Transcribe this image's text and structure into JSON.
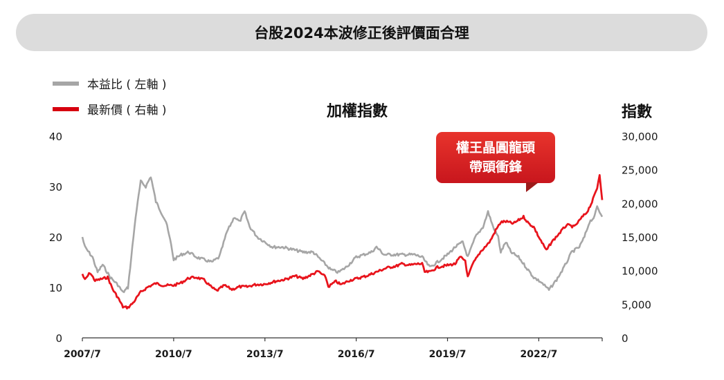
{
  "title": "台股2024本波修正後評價面合理",
  "legend": [
    {
      "label": "本益比 ( 左軸 )",
      "color": "#a6a6a6"
    },
    {
      "label": "最新價 ( 右軸 )",
      "color": "#e8141c"
    }
  ],
  "center_label": "加權指數",
  "right_axis_title": "指數",
  "callout": {
    "line1": "權王晶圓龍頭",
    "line2": "帶頭衝鋒"
  },
  "chart_data": {
    "type": "line",
    "x_ticks": [
      "2007/7",
      "2010/7",
      "2013/7",
      "2016/7",
      "2019/7",
      "2022/7"
    ],
    "x_range": [
      "2007/7",
      "2024/8"
    ],
    "y_left": {
      "ticks": [
        "0",
        "10",
        "20",
        "30",
        "40"
      ],
      "range": [
        0,
        40
      ]
    },
    "y_right": {
      "ticks": [
        "0",
        "5,000",
        "10,000",
        "15,000",
        "20,000",
        "25,000",
        "30,000"
      ],
      "range": [
        0,
        30000
      ]
    },
    "series": [
      {
        "name": "本益比 ( 左軸 )",
        "axis": "left",
        "color": "#a6a6a6",
        "points": [
          [
            "2007/7",
            20
          ],
          [
            "2007/8",
            18
          ],
          [
            "2007/11",
            16
          ],
          [
            "2008/1",
            13
          ],
          [
            "2008/3",
            14.5
          ],
          [
            "2008/6",
            12
          ],
          [
            "2008/9",
            10.5
          ],
          [
            "2008/11",
            9
          ],
          [
            "2009/1",
            10
          ],
          [
            "2009/4",
            24
          ],
          [
            "2009/6",
            31
          ],
          [
            "2009/8",
            30
          ],
          [
            "2009/10",
            32
          ],
          [
            "2009/12",
            27
          ],
          [
            "2010/2",
            25
          ],
          [
            "2010/4",
            23
          ],
          [
            "2010/6",
            18.5
          ],
          [
            "2010/7",
            15.5
          ],
          [
            "2010/10",
            16.5
          ],
          [
            "2011/1",
            17
          ],
          [
            "2011/4",
            16
          ],
          [
            "2011/7",
            15.5
          ],
          [
            "2011/10",
            15
          ],
          [
            "2012/1",
            16
          ],
          [
            "2012/4",
            21
          ],
          [
            "2012/7",
            24
          ],
          [
            "2012/9",
            23
          ],
          [
            "2012/11",
            25
          ],
          [
            "2013/1",
            22
          ],
          [
            "2013/4",
            20
          ],
          [
            "2013/7",
            19
          ],
          [
            "2013/10",
            18
          ],
          [
            "2014/2",
            18
          ],
          [
            "2014/6",
            17.5
          ],
          [
            "2014/10",
            17
          ],
          [
            "2015/2",
            17
          ],
          [
            "2015/6",
            15
          ],
          [
            "2015/9",
            13.5
          ],
          [
            "2015/12",
            13
          ],
          [
            "2016/3",
            14
          ],
          [
            "2016/7",
            16
          ],
          [
            "2016/10",
            16.5
          ],
          [
            "2017/1",
            17
          ],
          [
            "2017/3",
            18
          ],
          [
            "2017/6",
            16.5
          ],
          [
            "2017/10",
            16.5
          ],
          [
            "2018/2",
            16.5
          ],
          [
            "2018/6",
            16.5
          ],
          [
            "2018/9",
            16
          ],
          [
            "2018/12",
            14
          ],
          [
            "2019/3",
            15
          ],
          [
            "2019/7",
            16.5
          ],
          [
            "2019/10",
            18
          ],
          [
            "2020/1",
            19
          ],
          [
            "2020/3",
            16
          ],
          [
            "2020/6",
            20
          ],
          [
            "2020/9",
            22
          ],
          [
            "2020/11",
            25
          ],
          [
            "2021/1",
            22
          ],
          [
            "2021/3",
            20
          ],
          [
            "2021/4",
            17
          ],
          [
            "2021/6",
            19
          ],
          [
            "2021/8",
            17
          ],
          [
            "2021/11",
            16
          ],
          [
            "2022/2",
            14
          ],
          [
            "2022/5",
            12
          ],
          [
            "2022/8",
            11
          ],
          [
            "2022/11",
            9.5
          ],
          [
            "2023/2",
            11.5
          ],
          [
            "2023/5",
            14
          ],
          [
            "2023/8",
            17
          ],
          [
            "2023/11",
            18
          ],
          [
            "2024/1",
            20
          ],
          [
            "2024/3",
            23
          ],
          [
            "2024/5",
            24
          ],
          [
            "2024/6",
            26
          ],
          [
            "2024/7",
            25
          ],
          [
            "2024/8",
            24
          ]
        ]
      },
      {
        "name": "最新價 ( 右軸 )",
        "axis": "right",
        "color": "#e8141c",
        "points": [
          [
            "2007/7",
            9500
          ],
          [
            "2007/8",
            8600
          ],
          [
            "2007/10",
            9700
          ],
          [
            "2007/12",
            8500
          ],
          [
            "2008/3",
            8800
          ],
          [
            "2008/5",
            9000
          ],
          [
            "2008/7",
            7200
          ],
          [
            "2008/9",
            6000
          ],
          [
            "2008/11",
            4600
          ],
          [
            "2009/1",
            4500
          ],
          [
            "2009/3",
            5200
          ],
          [
            "2009/6",
            6800
          ],
          [
            "2009/9",
            7600
          ],
          [
            "2009/12",
            8100
          ],
          [
            "2010/3",
            7800
          ],
          [
            "2010/7",
            7800
          ],
          [
            "2010/10",
            8200
          ],
          [
            "2011/1",
            8900
          ],
          [
            "2011/4",
            9000
          ],
          [
            "2011/7",
            8600
          ],
          [
            "2011/10",
            7500
          ],
          [
            "2011/12",
            7000
          ],
          [
            "2012/3",
            7800
          ],
          [
            "2012/6",
            7200
          ],
          [
            "2012/9",
            7600
          ],
          [
            "2012/12",
            7600
          ],
          [
            "2013/3",
            7900
          ],
          [
            "2013/7",
            8000
          ],
          [
            "2013/11",
            8400
          ],
          [
            "2014/3",
            8700
          ],
          [
            "2014/7",
            9200
          ],
          [
            "2014/10",
            8800
          ],
          [
            "2015/2",
            9500
          ],
          [
            "2015/4",
            9900
          ],
          [
            "2015/7",
            9000
          ],
          [
            "2015/8",
            7600
          ],
          [
            "2015/11",
            8400
          ],
          [
            "2016/1",
            7900
          ],
          [
            "2016/4",
            8500
          ],
          [
            "2016/7",
            8800
          ],
          [
            "2016/11",
            9200
          ],
          [
            "2017/3",
            9800
          ],
          [
            "2017/7",
            10400
          ],
          [
            "2017/11",
            10700
          ],
          [
            "2018/1",
            11000
          ],
          [
            "2018/4",
            10800
          ],
          [
            "2018/7",
            11000
          ],
          [
            "2018/9",
            11000
          ],
          [
            "2018/10",
            9800
          ],
          [
            "2018/12",
            9800
          ],
          [
            "2019/3",
            10500
          ],
          [
            "2019/7",
            10800
          ],
          [
            "2019/10",
            11000
          ],
          [
            "2019/12",
            12000
          ],
          [
            "2020/2",
            11500
          ],
          [
            "2020/3",
            9000
          ],
          [
            "2020/5",
            11000
          ],
          [
            "2020/8",
            12800
          ],
          [
            "2020/11",
            14000
          ],
          [
            "2020/12",
            14500
          ],
          [
            "2021/2",
            16000
          ],
          [
            "2021/4",
            17200
          ],
          [
            "2021/6",
            17300
          ],
          [
            "2021/9",
            17000
          ],
          [
            "2022/1",
            18000
          ],
          [
            "2022/3",
            17000
          ],
          [
            "2022/5",
            16500
          ],
          [
            "2022/7",
            15000
          ],
          [
            "2022/10",
            13000
          ],
          [
            "2022/12",
            14200
          ],
          [
            "2023/3",
            15500
          ],
          [
            "2023/6",
            16800
          ],
          [
            "2023/9",
            16500
          ],
          [
            "2023/12",
            17900
          ],
          [
            "2024/2",
            18700
          ],
          [
            "2024/4",
            20200
          ],
          [
            "2024/6",
            22300
          ],
          [
            "2024/7",
            24300
          ],
          [
            "2024/8",
            20500
          ]
        ]
      }
    ]
  }
}
